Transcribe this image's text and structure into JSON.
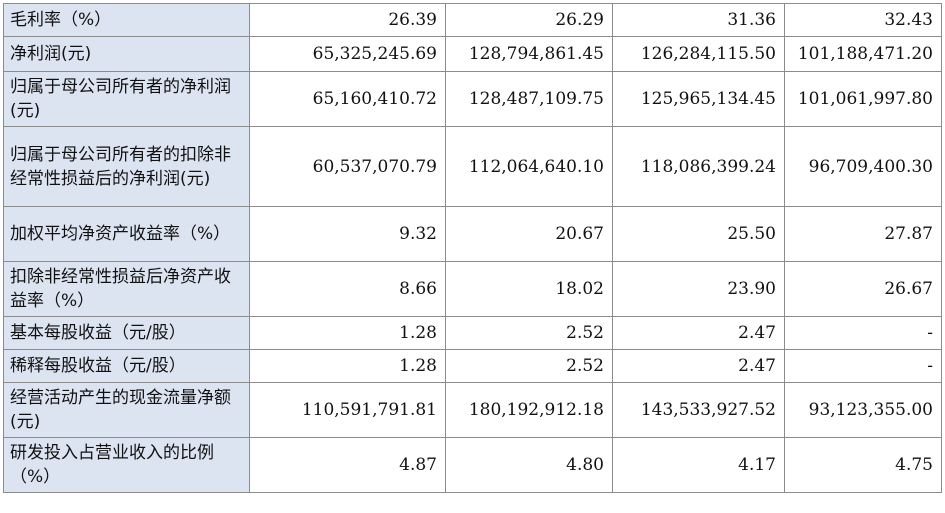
{
  "rows": [
    {
      "label": "毛利率（%）",
      "values": [
        "26.39",
        "26.29",
        "31.36",
        "32.43"
      ]
    },
    {
      "label": "净利润(元)",
      "values": [
        "65,325,245.69",
        "128,794,861.45",
        "126,284,115.50",
        "101,188,471.20"
      ]
    },
    {
      "label": "归属于母公司所有者的净利润(元)",
      "values": [
        "65,160,410.72",
        "128,487,109.75",
        "125,965,134.45",
        "101,061,997.80"
      ]
    },
    {
      "label": "归属于母公司所有者的扣除非经常性损益后的净利润(元)",
      "values": [
        "60,537,070.79",
        "112,064,640.10",
        "118,086,399.24",
        "96,709,400.30"
      ]
    },
    {
      "label": "加权平均净资产收益率（%）",
      "values": [
        "9.32",
        "20.67",
        "25.50",
        "27.87"
      ]
    },
    {
      "label": "扣除非经常性损益后净资产收益率（%）",
      "values": [
        "8.66",
        "18.02",
        "23.90",
        "26.67"
      ]
    },
    {
      "label": "基本每股收益（元/股）",
      "values": [
        "1.28",
        "2.52",
        "2.47",
        "-"
      ]
    },
    {
      "label": "稀释每股收益（元/股）",
      "values": [
        "1.28",
        "2.52",
        "2.47",
        "-"
      ]
    },
    {
      "label": "经营活动产生的现金流量净额(元)",
      "values": [
        "110,591,791.81",
        "180,192,912.18",
        "143,533,927.52",
        "93,123,355.00"
      ]
    },
    {
      "label": "研发投入占营业收入的比例（%）",
      "values": [
        "4.87",
        "4.80",
        "4.17",
        "4.75"
      ]
    }
  ]
}
